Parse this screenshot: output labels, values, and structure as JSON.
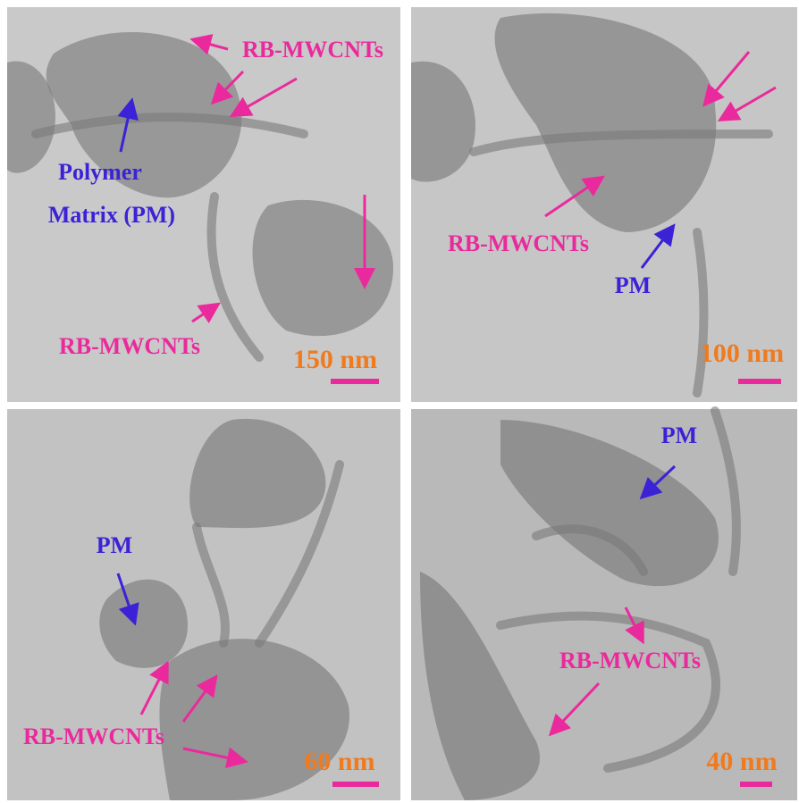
{
  "panels": [
    {
      "labels": [
        "RB-MWCNTs",
        "Polymer",
        "Matrix (PM)",
        "RB-MWCNTs"
      ],
      "scale_bar": "150 nm"
    },
    {
      "labels": [
        "RB-MWCNTs",
        "PM"
      ],
      "scale_bar": "100 nm"
    },
    {
      "labels": [
        "PM",
        "RB-MWCNTs"
      ],
      "scale_bar": "60 nm"
    },
    {
      "labels": [
        "PM",
        "RB-MWCNTs"
      ],
      "scale_bar": "40 nm"
    }
  ]
}
